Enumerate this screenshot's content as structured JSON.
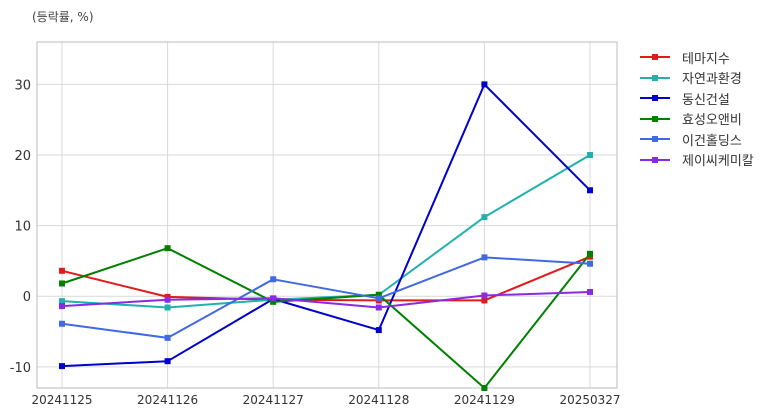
{
  "chart_data": {
    "type": "line",
    "unit_label": "(등락률, %)",
    "categories": [
      "20241125",
      "20241126",
      "20241127",
      "20241128",
      "20241129",
      "20250327"
    ],
    "ylim": [
      -13,
      36
    ],
    "yticks": [
      -10,
      0,
      10,
      20,
      30
    ],
    "grid": true,
    "legend_position": "right",
    "series": [
      {
        "name": "테마지수",
        "color": "#e31a1c",
        "values": [
          3.6,
          -0.1,
          -0.5,
          -0.6,
          -0.6,
          5.6
        ]
      },
      {
        "name": "자연과환경",
        "color": "#20b2aa",
        "values": [
          -0.7,
          -1.6,
          -0.5,
          0.2,
          11.2,
          20.0
        ]
      },
      {
        "name": "동신건설",
        "color": "#0000cd",
        "values": [
          -9.9,
          -9.2,
          -0.4,
          -4.8,
          30.0,
          15.0
        ]
      },
      {
        "name": "효성오앤비",
        "color": "#008000",
        "values": [
          1.8,
          6.8,
          -0.8,
          0.2,
          -13.0,
          6.0
        ]
      },
      {
        "name": "이건홀딩스",
        "color": "#4169e1",
        "values": [
          -3.9,
          -5.9,
          2.4,
          -0.3,
          5.5,
          4.6
        ]
      },
      {
        "name": "제이씨케미칼",
        "color": "#8a2be2",
        "values": [
          -1.4,
          -0.5,
          -0.3,
          -1.6,
          0.1,
          0.6
        ]
      }
    ]
  }
}
